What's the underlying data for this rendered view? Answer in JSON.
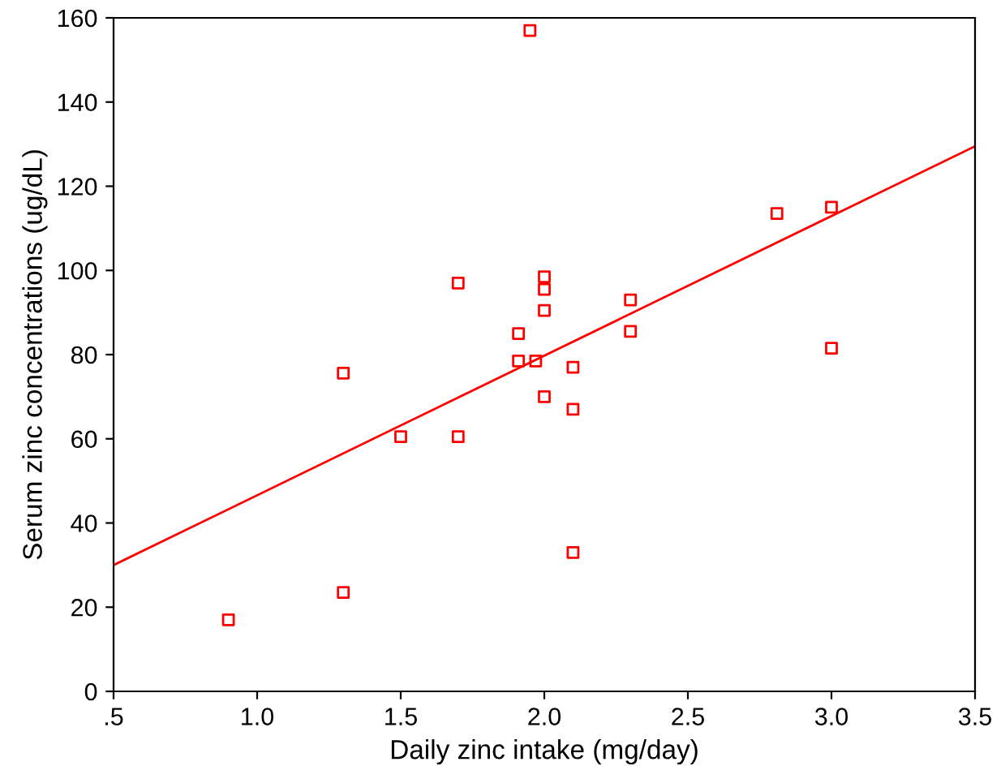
{
  "chart_data": {
    "type": "scatter",
    "xlabel": "Daily zinc intake (mg/day)",
    "ylabel": "Serum zinc concentrations (ug/dL)",
    "xlim": [
      0.5,
      3.5
    ],
    "ylim": [
      0,
      160
    ],
    "xticks": [
      {
        "value": 0.5,
        "label": ".5"
      },
      {
        "value": 1.0,
        "label": "1.0"
      },
      {
        "value": 1.5,
        "label": "1.5"
      },
      {
        "value": 2.0,
        "label": "2.0"
      },
      {
        "value": 2.5,
        "label": "2.5"
      },
      {
        "value": 3.0,
        "label": "3.0"
      },
      {
        "value": 3.5,
        "label": "3.5"
      }
    ],
    "yticks": [
      0,
      20,
      40,
      60,
      80,
      100,
      120,
      140,
      160
    ],
    "grid": false,
    "series": [
      {
        "marker": "square",
        "color": "#ff0000",
        "x": [
          0.9,
          1.3,
          1.3,
          1.5,
          1.7,
          1.7,
          1.91,
          1.91,
          1.97,
          2.0,
          2.0,
          2.0,
          2.0,
          1.95,
          2.1,
          2.1,
          2.1,
          2.3,
          2.3,
          2.81,
          3.0,
          3.0
        ],
        "values": [
          17,
          75.6,
          23.5,
          60.5,
          60.5,
          97,
          85,
          78.5,
          78.5,
          98.5,
          95.5,
          90.5,
          70,
          157,
          77,
          67,
          33,
          93,
          85.5,
          113.5,
          115,
          81.5
        ]
      },
      {
        "type": "line",
        "color": "#ff0000",
        "x": [
          0.5,
          3.5
        ],
        "values": [
          30,
          129.5
        ]
      }
    ]
  }
}
